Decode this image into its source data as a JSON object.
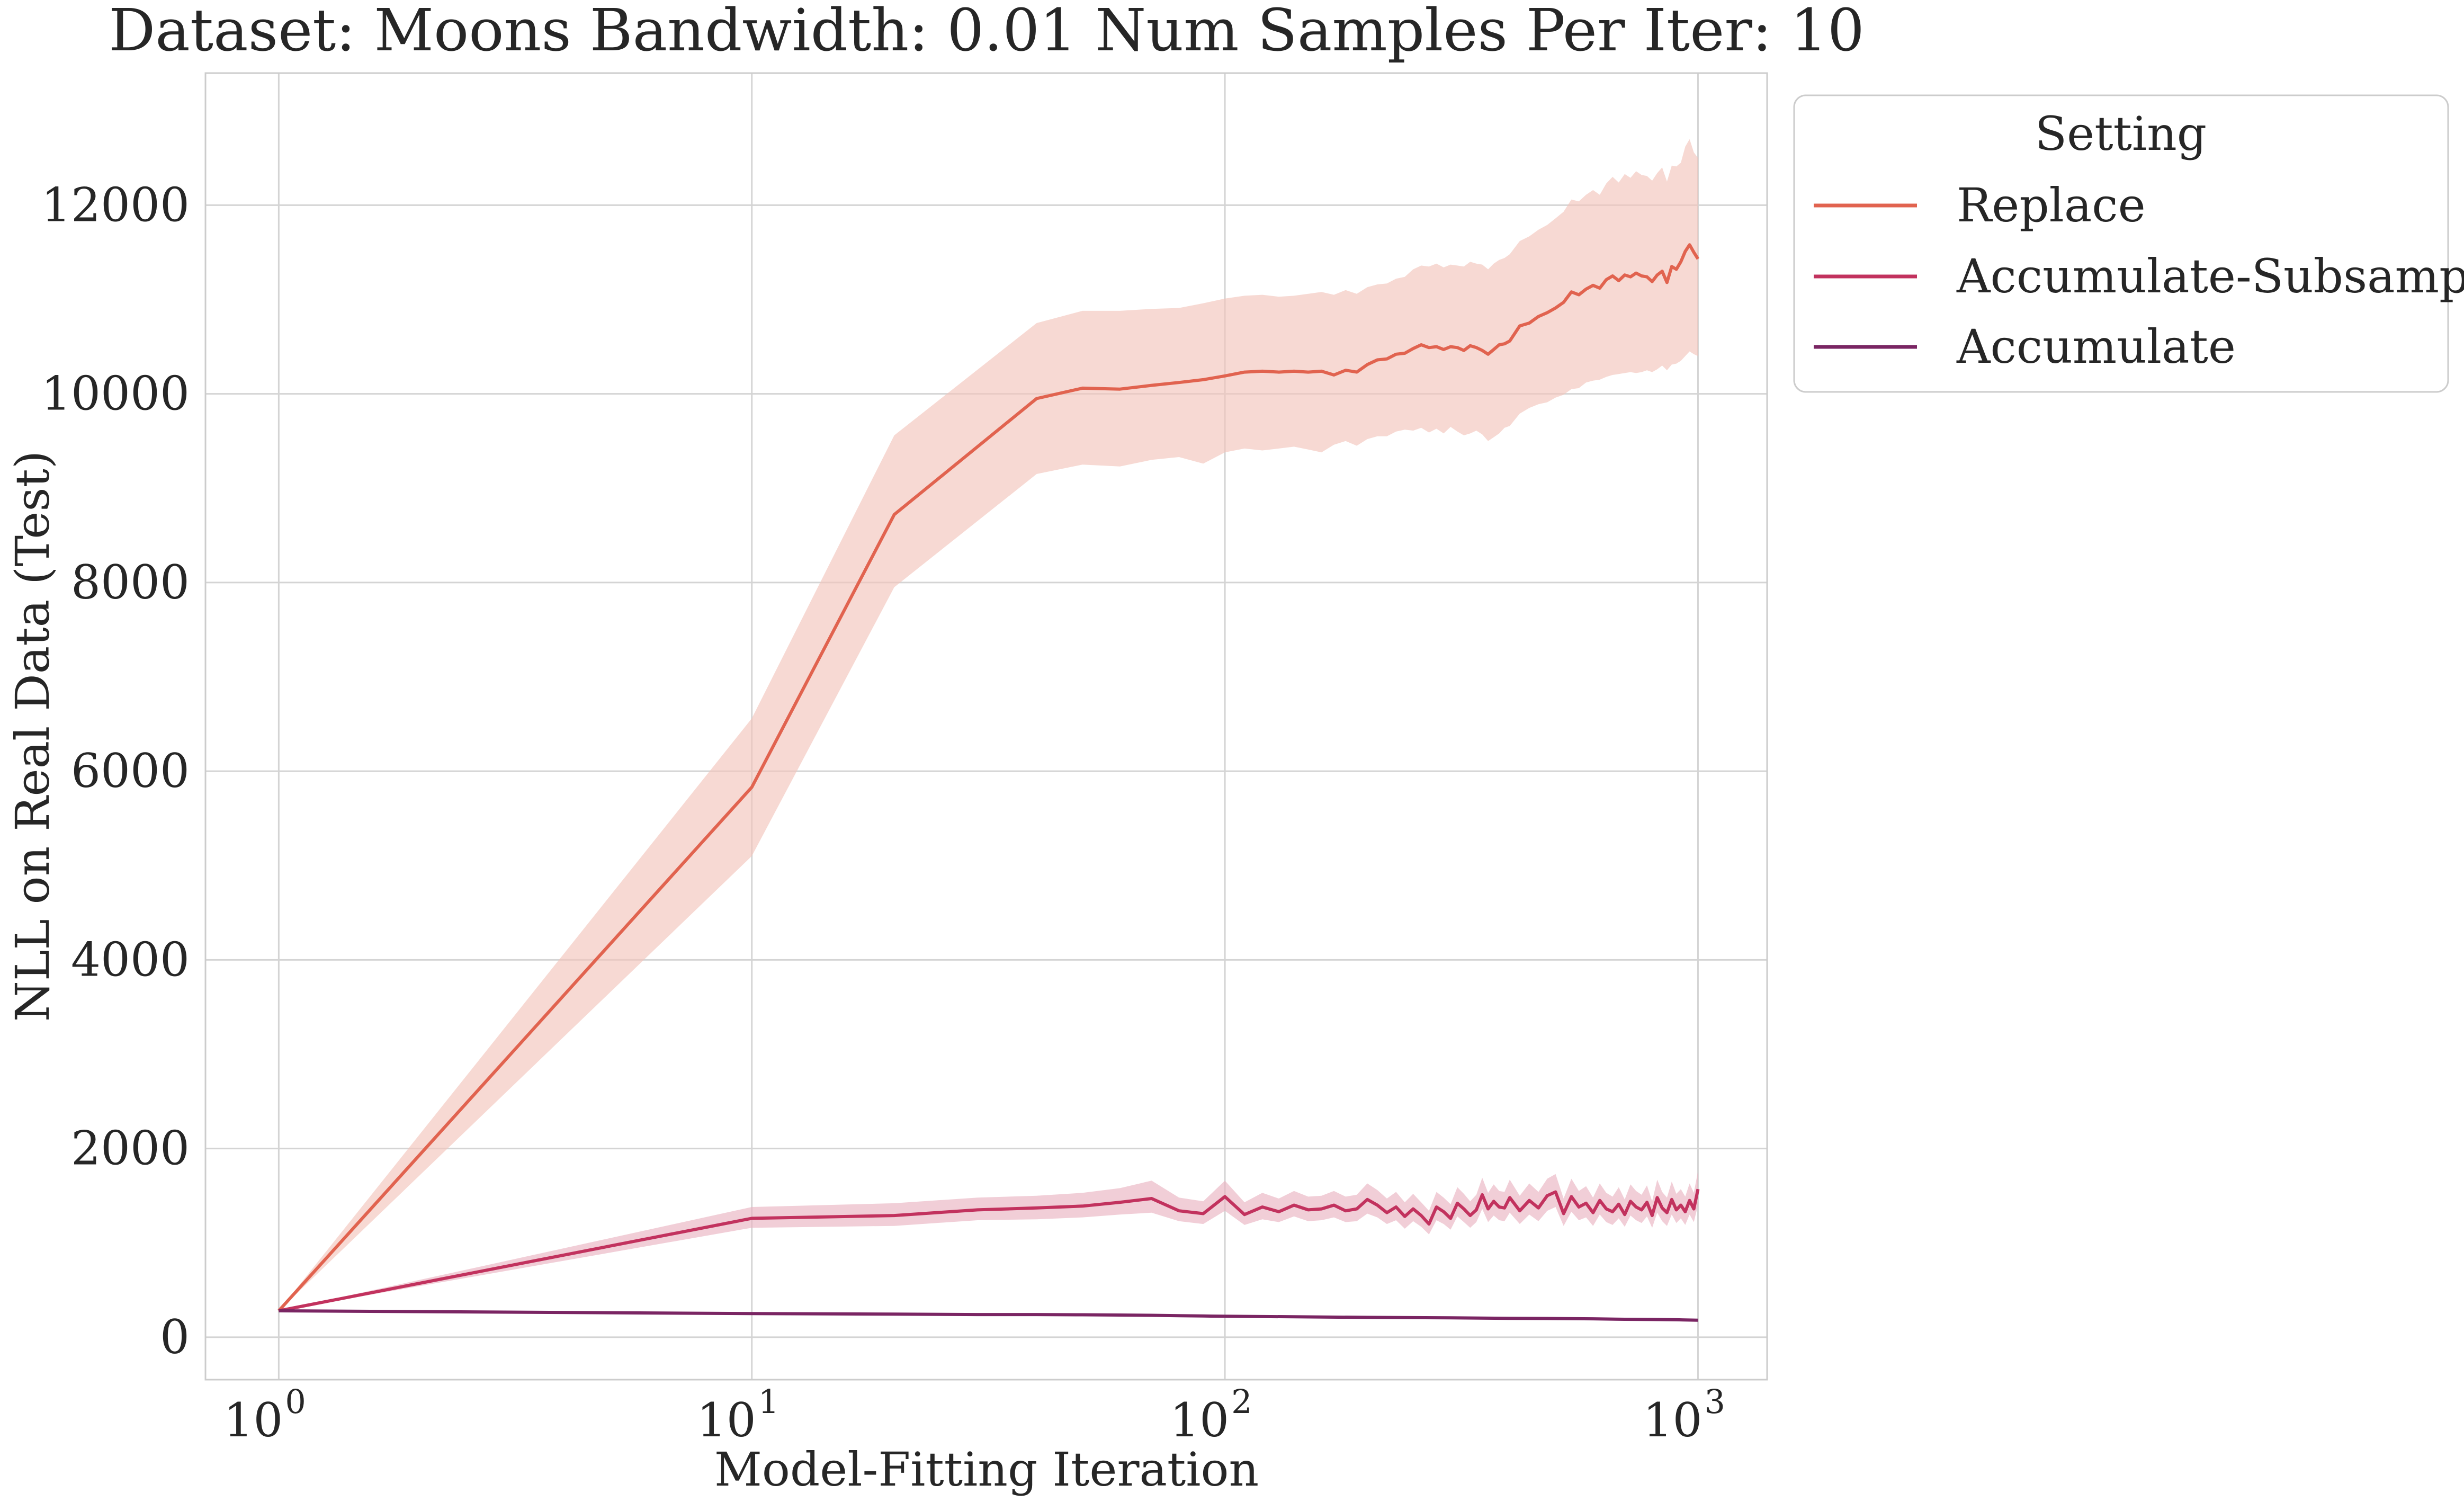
{
  "chart_data": {
    "type": "line",
    "title": "Dataset: Moons Bandwidth: 0.01 Num Samples Per Iter: 10",
    "xlabel": "Model-Fitting Iteration",
    "ylabel": "NLL on Real Data (Test)",
    "xscale": "log",
    "xlim": [
      0.7,
      1400
    ],
    "ylim": [
      -450,
      13400
    ],
    "xticks": [
      {
        "value": 1,
        "base": "10",
        "exp": "0"
      },
      {
        "value": 10,
        "base": "10",
        "exp": "1"
      },
      {
        "value": 100,
        "base": "10",
        "exp": "2"
      },
      {
        "value": 1000,
        "base": "10",
        "exp": "3"
      }
    ],
    "yticks": [
      {
        "value": 0,
        "label": "0"
      },
      {
        "value": 2000,
        "label": "2000"
      },
      {
        "value": 4000,
        "label": "4000"
      },
      {
        "value": 6000,
        "label": "6000"
      },
      {
        "value": 8000,
        "label": "8000"
      },
      {
        "value": 10000,
        "label": "10000"
      },
      {
        "value": 12000,
        "label": "12000"
      }
    ],
    "grid": true,
    "legend": {
      "title": "Setting",
      "placement": "outside upper right"
    },
    "series": [
      {
        "name": "Replace",
        "color": "#e1634f",
        "band_color": "#f3c5bc",
        "x": [
          1,
          10,
          20,
          40,
          50,
          60,
          70,
          80,
          90,
          100,
          110,
          120,
          130,
          140,
          150,
          160,
          170,
          180,
          190,
          200,
          210,
          220,
          230,
          240,
          250,
          260,
          270,
          280,
          290,
          300,
          310,
          320,
          330,
          340,
          350,
          360,
          370,
          380,
          390,
          400,
          420,
          440,
          460,
          480,
          500,
          520,
          540,
          560,
          580,
          600,
          620,
          640,
          660,
          680,
          700,
          720,
          740,
          760,
          780,
          800,
          820,
          840,
          860,
          880,
          900,
          920,
          940,
          960,
          980,
          1000
        ],
        "y": [
          280,
          5830,
          8720,
          9950,
          10060,
          10050,
          10090,
          10120,
          10150,
          10190,
          10230,
          10240,
          10230,
          10240,
          10230,
          10240,
          10200,
          10250,
          10230,
          10310,
          10360,
          10370,
          10420,
          10430,
          10480,
          10520,
          10490,
          10500,
          10470,
          10500,
          10490,
          10460,
          10510,
          10490,
          10460,
          10420,
          10470,
          10520,
          10530,
          10560,
          10720,
          10750,
          10820,
          10860,
          10910,
          10970,
          11080,
          11050,
          11110,
          11150,
          11120,
          11210,
          11250,
          11200,
          11260,
          11240,
          11280,
          11250,
          11240,
          11190,
          11260,
          11300,
          11180,
          11350,
          11320,
          11400,
          11510,
          11580,
          11500,
          11430
        ],
        "lower": [
          280,
          5100,
          7950,
          9150,
          9250,
          9230,
          9300,
          9330,
          9260,
          9380,
          9420,
          9400,
          9420,
          9440,
          9410,
          9380,
          9460,
          9500,
          9450,
          9520,
          9550,
          9550,
          9600,
          9620,
          9610,
          9640,
          9590,
          9630,
          9580,
          9650,
          9600,
          9560,
          9580,
          9610,
          9570,
          9500,
          9540,
          9580,
          9640,
          9660,
          9790,
          9850,
          9890,
          9910,
          9960,
          9990,
          10050,
          10060,
          10120,
          10140,
          10150,
          10180,
          10200,
          10210,
          10220,
          10230,
          10220,
          10230,
          10250,
          10230,
          10260,
          10300,
          10250,
          10310,
          10320,
          10350,
          10400,
          10450,
          10420,
          10400
        ],
        "upper": [
          280,
          6560,
          9560,
          10750,
          10880,
          10880,
          10900,
          10910,
          10960,
          11010,
          11040,
          11050,
          11030,
          11040,
          11060,
          11080,
          11050,
          11100,
          11060,
          11130,
          11160,
          11170,
          11220,
          11240,
          11320,
          11360,
          11350,
          11380,
          11340,
          11370,
          11360,
          11350,
          11400,
          11380,
          11370,
          11320,
          11380,
          11420,
          11440,
          11480,
          11620,
          11670,
          11740,
          11790,
          11860,
          11930,
          12060,
          12040,
          12110,
          12160,
          12110,
          12230,
          12300,
          12240,
          12330,
          12290,
          12360,
          12320,
          12310,
          12260,
          12340,
          12400,
          12250,
          12420,
          12410,
          12450,
          12620,
          12700,
          12560,
          12500
        ]
      },
      {
        "name": "Accumulate-Subsample",
        "color": "#c2325e",
        "band_color": "#eab4c2",
        "x": [
          1,
          10,
          20,
          30,
          40,
          50,
          60,
          70,
          80,
          90,
          100,
          110,
          120,
          130,
          140,
          150,
          160,
          170,
          180,
          190,
          200,
          210,
          220,
          230,
          240,
          250,
          260,
          270,
          280,
          290,
          300,
          310,
          320,
          330,
          340,
          350,
          360,
          370,
          380,
          390,
          400,
          420,
          440,
          460,
          480,
          500,
          520,
          540,
          560,
          580,
          600,
          620,
          640,
          660,
          680,
          700,
          720,
          740,
          760,
          780,
          800,
          820,
          840,
          860,
          880,
          900,
          920,
          940,
          960,
          980,
          1000
        ],
        "y": [
          280,
          1260,
          1290,
          1350,
          1370,
          1390,
          1430,
          1470,
          1340,
          1310,
          1490,
          1300,
          1380,
          1330,
          1400,
          1350,
          1360,
          1400,
          1340,
          1360,
          1460,
          1400,
          1320,
          1380,
          1280,
          1360,
          1290,
          1200,
          1380,
          1330,
          1260,
          1420,
          1360,
          1290,
          1350,
          1510,
          1360,
          1440,
          1380,
          1370,
          1480,
          1340,
          1450,
          1370,
          1500,
          1540,
          1310,
          1490,
          1380,
          1420,
          1320,
          1450,
          1360,
          1330,
          1410,
          1300,
          1440,
          1380,
          1350,
          1430,
          1290,
          1480,
          1370,
          1320,
          1460,
          1350,
          1400,
          1330,
          1450,
          1360,
          1570
        ],
        "lower": [
          280,
          1160,
          1180,
          1240,
          1250,
          1270,
          1300,
          1320,
          1230,
          1200,
          1340,
          1190,
          1250,
          1220,
          1280,
          1230,
          1240,
          1270,
          1220,
          1230,
          1310,
          1270,
          1200,
          1240,
          1150,
          1230,
          1170,
          1090,
          1240,
          1200,
          1140,
          1280,
          1220,
          1160,
          1220,
          1360,
          1220,
          1290,
          1240,
          1230,
          1320,
          1200,
          1300,
          1230,
          1340,
          1380,
          1180,
          1330,
          1240,
          1270,
          1180,
          1300,
          1220,
          1190,
          1260,
          1170,
          1290,
          1240,
          1210,
          1280,
          1160,
          1320,
          1230,
          1180,
          1300,
          1210,
          1260,
          1190,
          1300,
          1220,
          1400
        ],
        "upper": [
          280,
          1380,
          1420,
          1480,
          1500,
          1530,
          1580,
          1660,
          1480,
          1440,
          1660,
          1430,
          1530,
          1470,
          1550,
          1490,
          1500,
          1550,
          1490,
          1510,
          1630,
          1560,
          1470,
          1540,
          1430,
          1520,
          1430,
          1340,
          1540,
          1480,
          1410,
          1590,
          1520,
          1440,
          1510,
          1690,
          1530,
          1620,
          1550,
          1540,
          1670,
          1500,
          1630,
          1540,
          1680,
          1730,
          1470,
          1680,
          1550,
          1600,
          1480,
          1630,
          1530,
          1490,
          1590,
          1460,
          1620,
          1550,
          1510,
          1610,
          1440,
          1670,
          1540,
          1480,
          1650,
          1520,
          1570,
          1490,
          1630,
          1530,
          1760
        ]
      },
      {
        "name": "Accumulate",
        "color": "#7a2563",
        "band_color": "#d6b5cf",
        "x": [
          1,
          10,
          20,
          30,
          40,
          50,
          60,
          70,
          80,
          90,
          100,
          150,
          200,
          300,
          400,
          500,
          600,
          700,
          800,
          900,
          1000
        ],
        "y": [
          280,
          250,
          245,
          240,
          240,
          238,
          235,
          232,
          228,
          225,
          222,
          215,
          210,
          205,
          200,
          198,
          195,
          190,
          188,
          185,
          180
        ],
        "lower": [
          280,
          240,
          235,
          230,
          230,
          228,
          225,
          222,
          218,
          215,
          212,
          205,
          200,
          195,
          190,
          188,
          185,
          180,
          178,
          175,
          170
        ],
        "upper": [
          280,
          260,
          255,
          250,
          250,
          248,
          245,
          242,
          238,
          235,
          232,
          225,
          220,
          215,
          210,
          208,
          205,
          200,
          198,
          195,
          190
        ]
      }
    ]
  }
}
